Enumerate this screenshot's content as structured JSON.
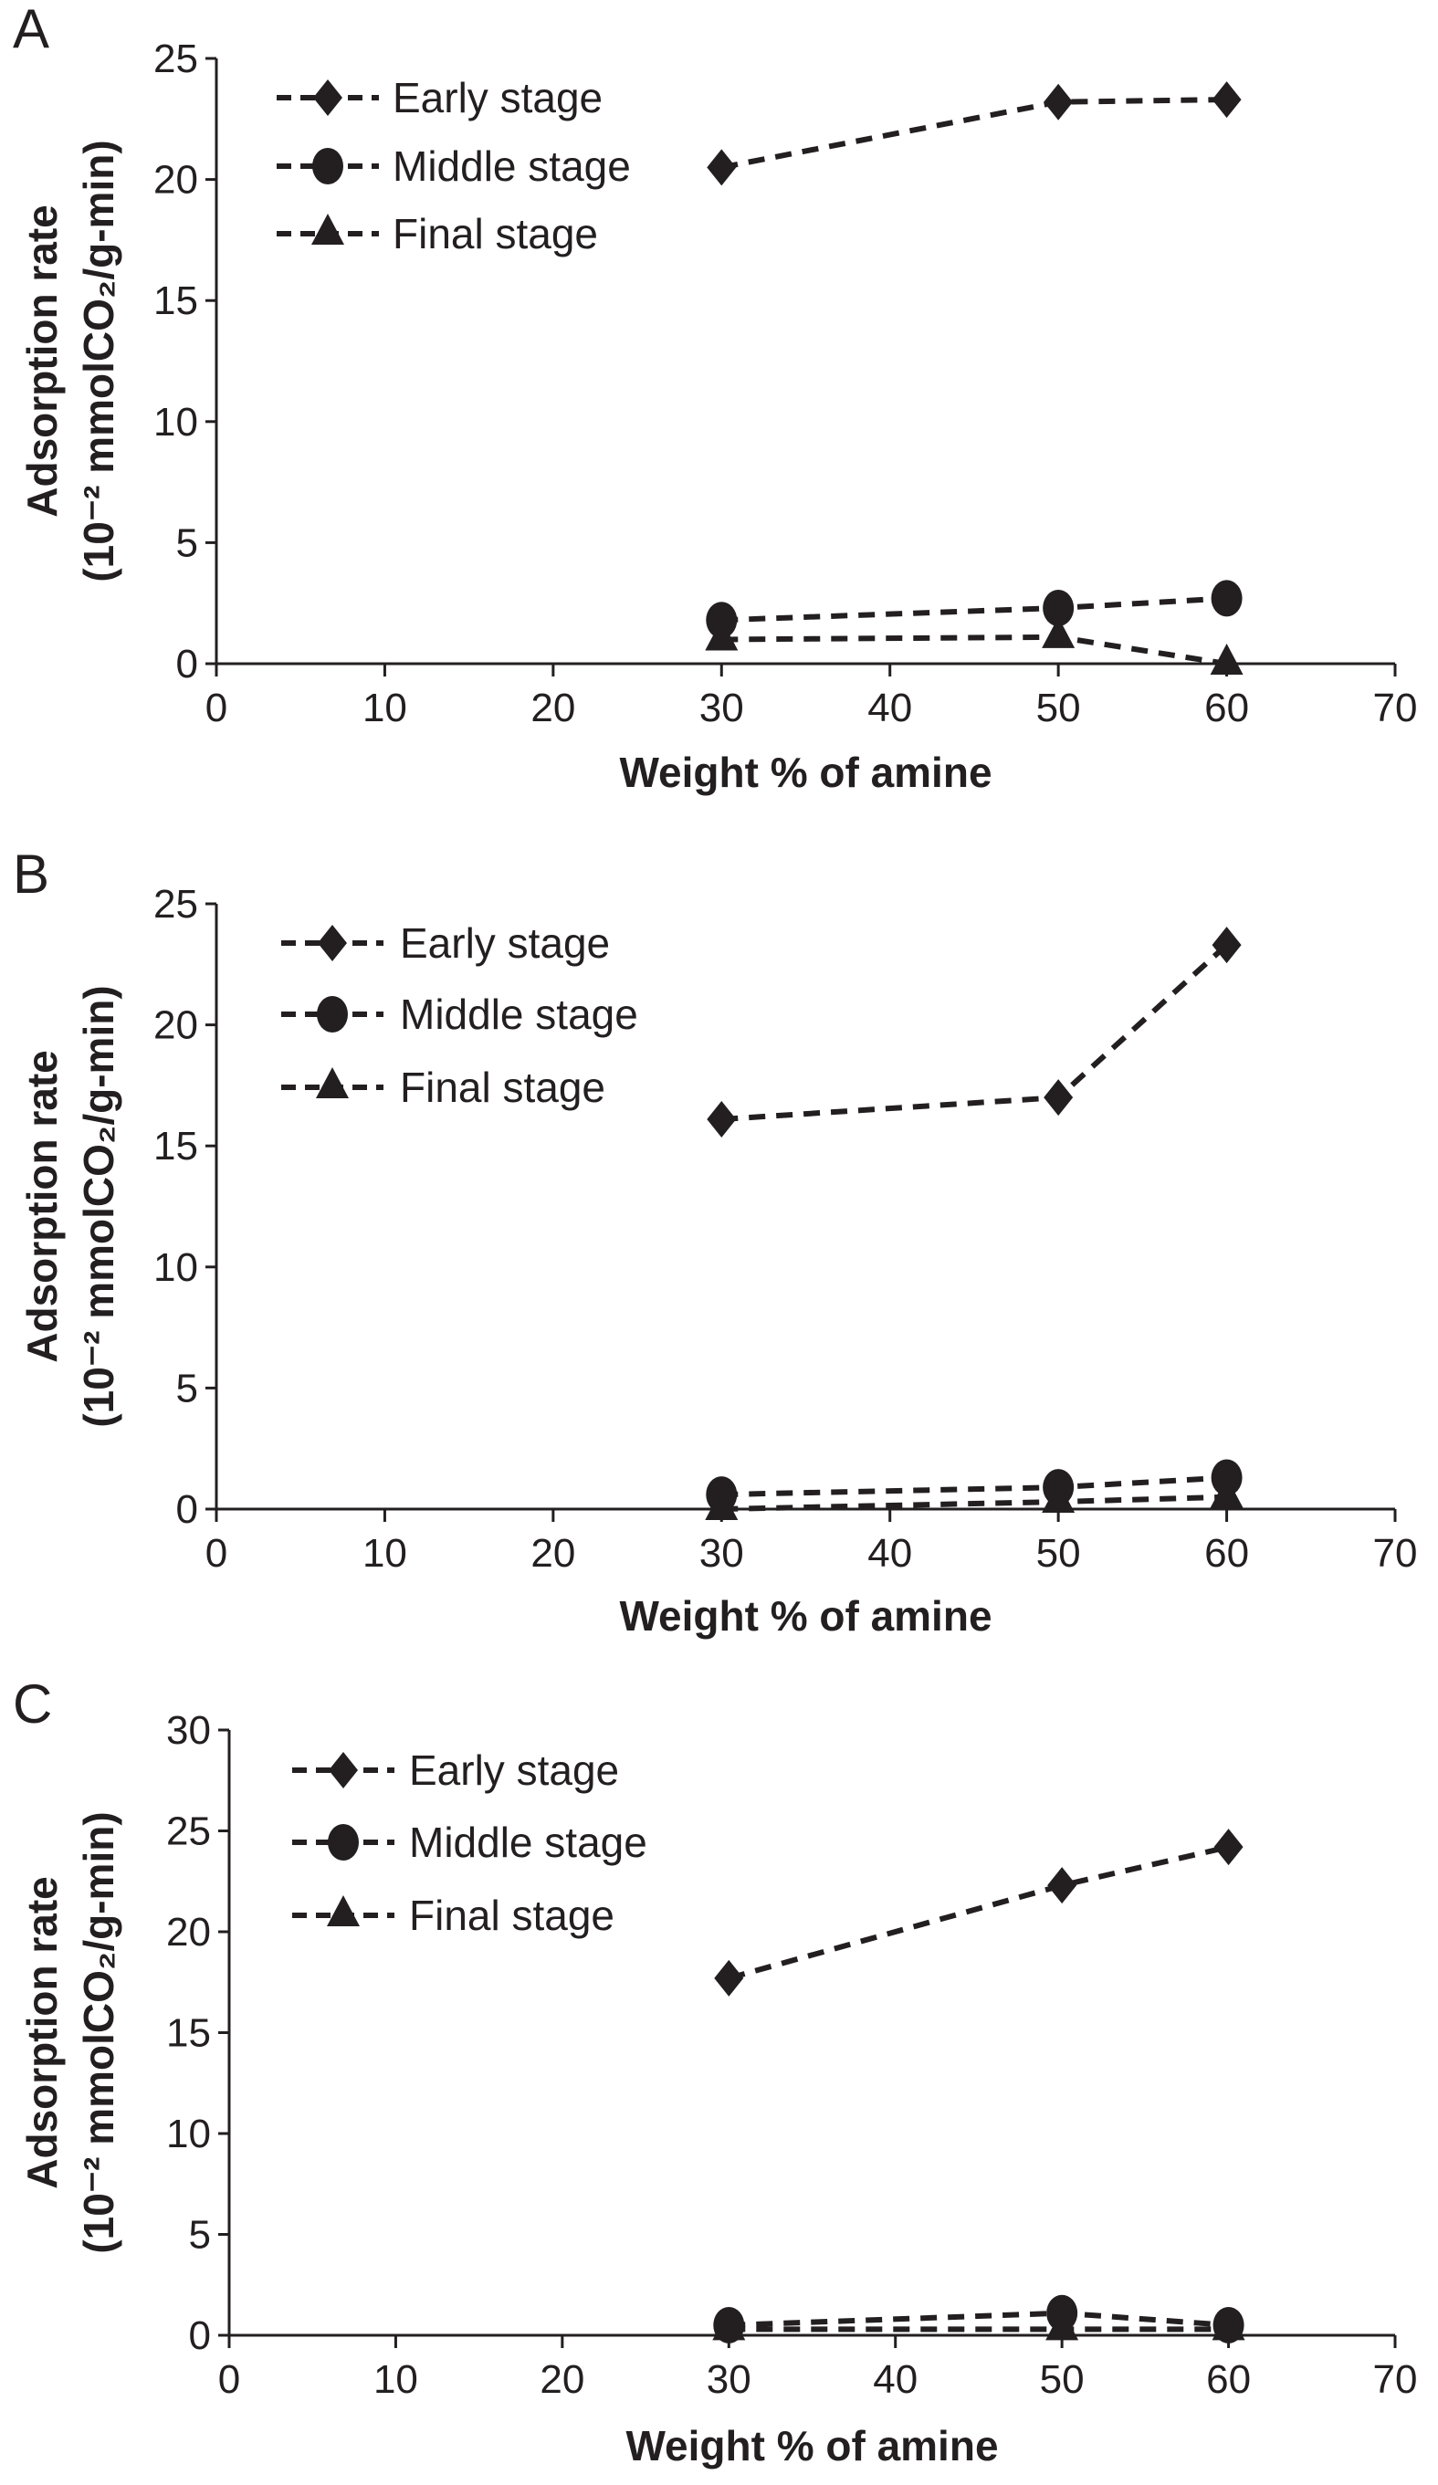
{
  "chart_data": [
    {
      "panel_label": "A",
      "type": "line",
      "xlabel": "Weight % of amine",
      "ylabel_line1": "Adsorption rate",
      "ylabel_line2": "(10⁻² mmolCO₂/g-min)",
      "xlim": [
        0,
        70
      ],
      "xticks": [
        0,
        10,
        20,
        30,
        40,
        50,
        60,
        70
      ],
      "ylim": [
        0,
        25
      ],
      "yticks": [
        0,
        5,
        10,
        15,
        20,
        25
      ],
      "grid": false,
      "legend_placement": "top-left",
      "x": [
        30,
        50,
        60
      ],
      "series": [
        {
          "name": "Early stage",
          "marker": "diamond",
          "values": [
            20.5,
            23.2,
            23.3
          ]
        },
        {
          "name": "Middle stage",
          "marker": "circle",
          "values": [
            1.8,
            2.3,
            2.7
          ]
        },
        {
          "name": "Final stage",
          "marker": "triangle",
          "values": [
            1.0,
            1.1,
            0.0
          ]
        }
      ]
    },
    {
      "panel_label": "B",
      "type": "line",
      "xlabel": "Weight % of amine",
      "ylabel_line1": "Adsorption rate",
      "ylabel_line2": "(10⁻² mmolCO₂/g-min)",
      "xlim": [
        0,
        70
      ],
      "xticks": [
        0,
        10,
        20,
        30,
        40,
        50,
        60,
        70
      ],
      "ylim": [
        0,
        25
      ],
      "yticks": [
        0,
        5,
        10,
        15,
        20,
        25
      ],
      "grid": false,
      "legend_placement": "top-left",
      "x": [
        30,
        50,
        60
      ],
      "series": [
        {
          "name": "Early stage",
          "marker": "diamond",
          "values": [
            16.1,
            17.0,
            23.3
          ]
        },
        {
          "name": "Middle stage",
          "marker": "circle",
          "values": [
            0.6,
            0.9,
            1.3
          ]
        },
        {
          "name": "Final stage",
          "marker": "triangle",
          "values": [
            0.0,
            0.3,
            0.5
          ]
        }
      ]
    },
    {
      "panel_label": "C",
      "type": "line",
      "xlabel": "Weight % of amine",
      "ylabel_line1": "Adsorption rate",
      "ylabel_line2": "(10⁻² mmolCO₂/g-min)",
      "xlim": [
        0,
        70
      ],
      "xticks": [
        0,
        10,
        20,
        30,
        40,
        50,
        60,
        70
      ],
      "ylim": [
        0,
        30
      ],
      "yticks": [
        0,
        5,
        10,
        15,
        20,
        25,
        30
      ],
      "grid": false,
      "legend_placement": "top-left",
      "x": [
        30,
        50,
        60
      ],
      "series": [
        {
          "name": "Early stage",
          "marker": "diamond",
          "values": [
            17.7,
            22.3,
            24.2
          ]
        },
        {
          "name": "Middle stage",
          "marker": "circle",
          "values": [
            0.5,
            1.1,
            0.5
          ]
        },
        {
          "name": "Final stage",
          "marker": "triangle",
          "values": [
            0.3,
            0.3,
            0.3
          ]
        }
      ]
    }
  ],
  "colors": {
    "ink": "#231f20",
    "background": "#ffffff"
  }
}
